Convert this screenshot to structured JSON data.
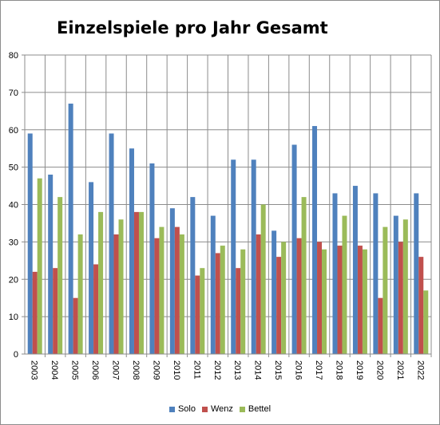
{
  "chart_data": {
    "type": "bar",
    "title": "Einzelspiele pro Jahr Gesamt",
    "xlabel": "",
    "ylabel": "",
    "ylim": [
      0,
      80
    ],
    "yticks": [
      "0",
      "10",
      "20",
      "30",
      "40",
      "50",
      "60",
      "70",
      "80"
    ],
    "grid": true,
    "legend_position": "bottom",
    "categories": [
      "2003",
      "2004",
      "2005",
      "2006",
      "2007",
      "2008",
      "2009",
      "2010",
      "2011",
      "2012",
      "2013",
      "2014",
      "2015",
      "2016",
      "2017",
      "2018",
      "2019",
      "2020",
      "2021",
      "2022"
    ],
    "series": [
      {
        "name": "Solo",
        "color": "#4f81bd",
        "values": [
          59,
          48,
          67,
          46,
          59,
          55,
          51,
          39,
          42,
          37,
          52,
          52,
          33,
          56,
          61,
          43,
          45,
          43,
          37,
          43
        ]
      },
      {
        "name": "Wenz",
        "color": "#c0504d",
        "values": [
          22,
          23,
          15,
          24,
          32,
          38,
          31,
          34,
          21,
          27,
          23,
          32,
          26,
          31,
          30,
          29,
          29,
          15,
          30,
          26
        ]
      },
      {
        "name": "Bettel",
        "color": "#9bbb59",
        "values": [
          47,
          42,
          32,
          38,
          36,
          38,
          34,
          32,
          23,
          29,
          28,
          40,
          30,
          42,
          28,
          37,
          28,
          34,
          36,
          17
        ]
      }
    ]
  }
}
